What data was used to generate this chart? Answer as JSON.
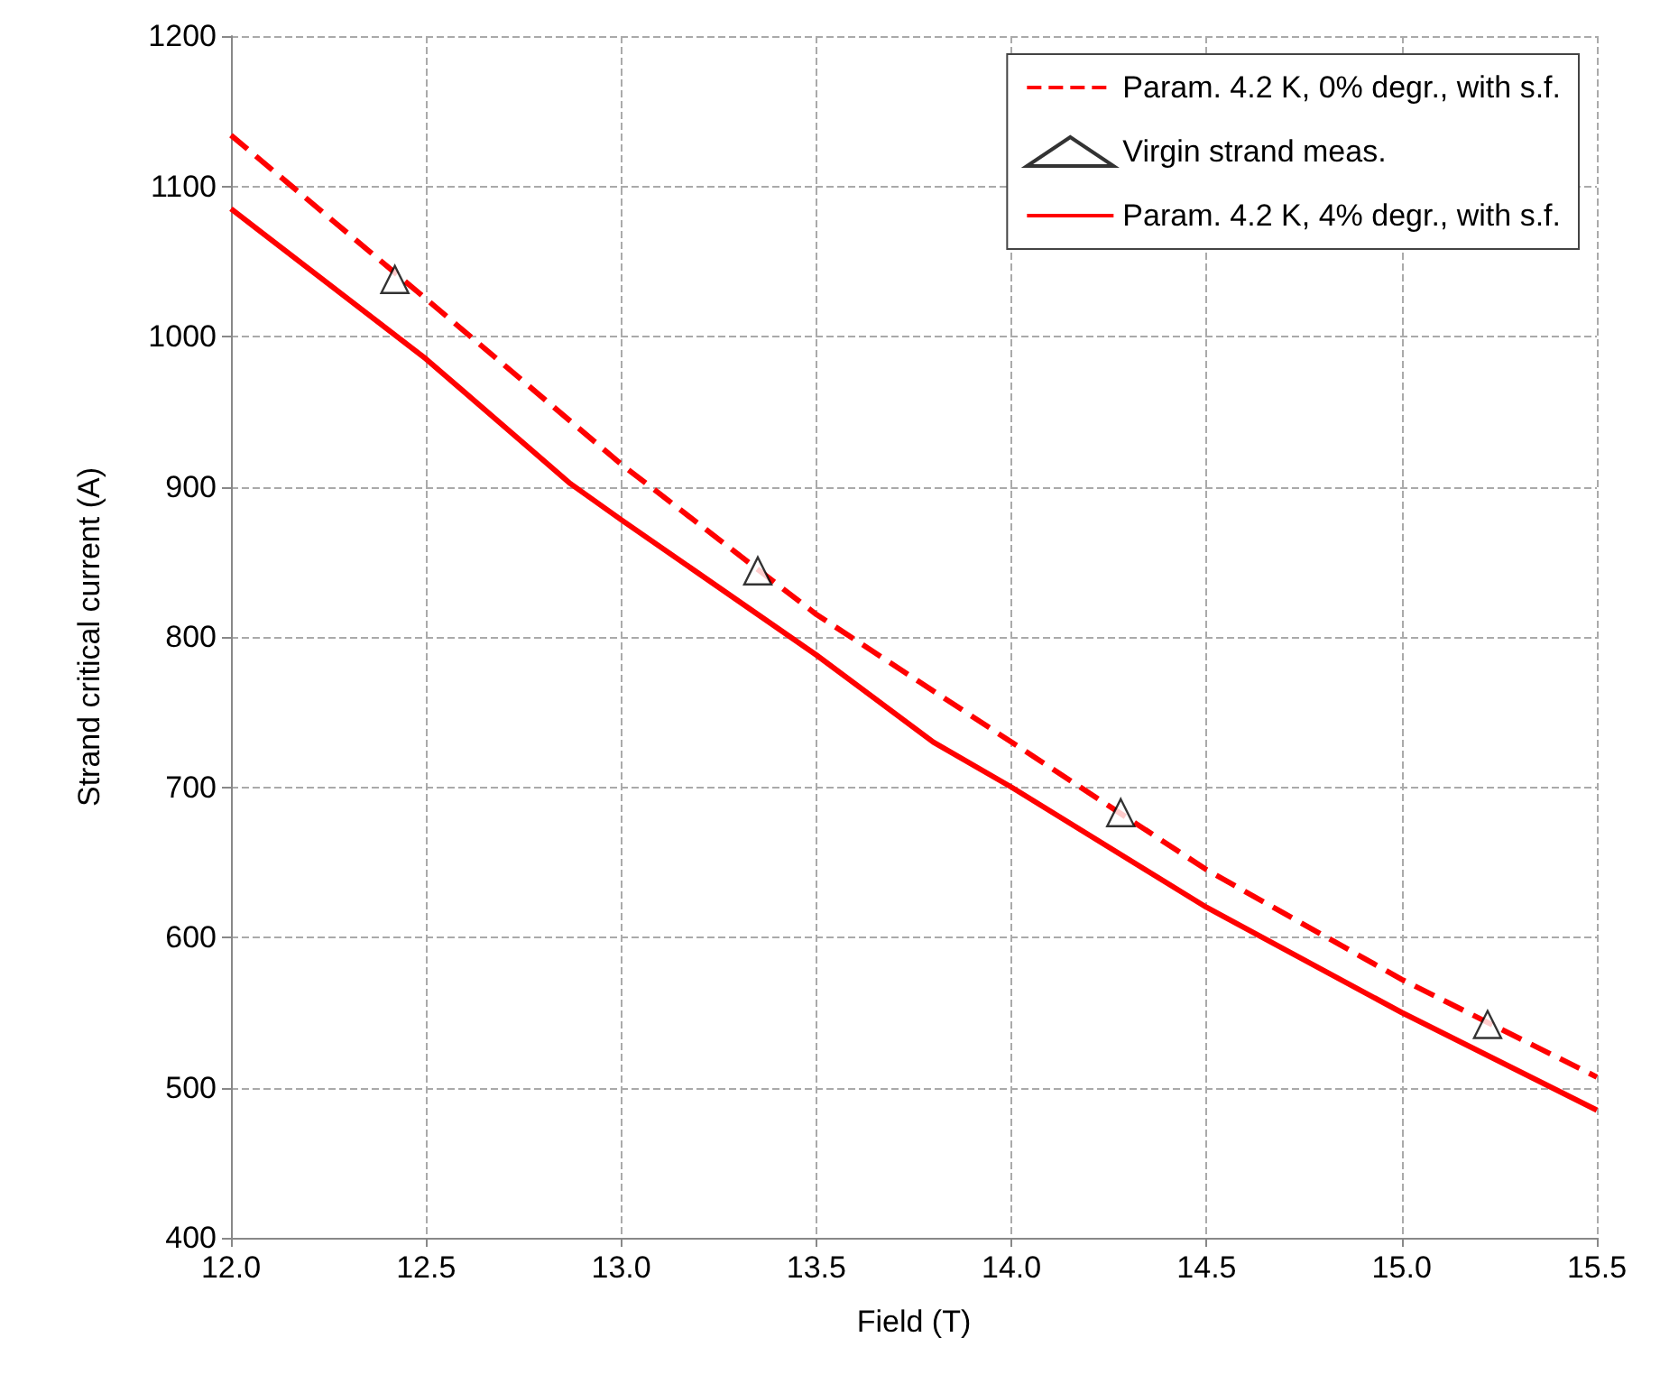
{
  "chart_data": {
    "type": "line",
    "xlabel": "Field (T)",
    "ylabel": "Strand critical current (A)",
    "xlim": [
      12.0,
      15.5
    ],
    "xticks": [
      {
        "value": 12,
        "label": "12.0"
      },
      {
        "value": 12.5,
        "label": "12.5"
      },
      {
        "value": 13,
        "label": "13.0"
      },
      {
        "value": 13.5,
        "label": "13.5"
      },
      {
        "value": 14,
        "label": "14.0"
      },
      {
        "value": 14.5,
        "label": "14.5"
      },
      {
        "value": 15,
        "label": "15.0"
      },
      {
        "value": 15.5,
        "label": "15.5"
      }
    ],
    "ylim": [
      400,
      1200
    ],
    "yticks": [
      400,
      500,
      600,
      700,
      800,
      900,
      1000,
      1100,
      1200
    ],
    "grid": true,
    "legend": "top right",
    "series": [
      {
        "name": "Param. 4.2 K, 0% degr., with s.f.",
        "color": "#ff0000",
        "line_style": "dashed",
        "marker": "none",
        "x": [
          12.0,
          12.5,
          13.0,
          13.5,
          14.0,
          14.5,
          15.0,
          15.5
        ],
        "values": [
          1134,
          1025,
          915,
          815,
          730,
          645,
          572,
          507
        ]
      },
      {
        "name": "Virgin strand meas.",
        "type": "scatter",
        "color": "#000000",
        "marker": "triangle",
        "x": [
          12.42,
          13.35,
          14.28,
          15.22
        ],
        "values": [
          1038,
          844,
          683,
          542
        ]
      },
      {
        "name": "Param. 4.2 K, 4% degr., with s.f.",
        "color": "#ff0000",
        "line_style": "solid",
        "marker": "none",
        "x": [
          12.0,
          12.5,
          12.87,
          13.0,
          13.5,
          13.8,
          14.0,
          14.5,
          15.0,
          15.5
        ],
        "values": [
          1085,
          985,
          902,
          878,
          788,
          730,
          700,
          620,
          550,
          485
        ]
      }
    ]
  }
}
